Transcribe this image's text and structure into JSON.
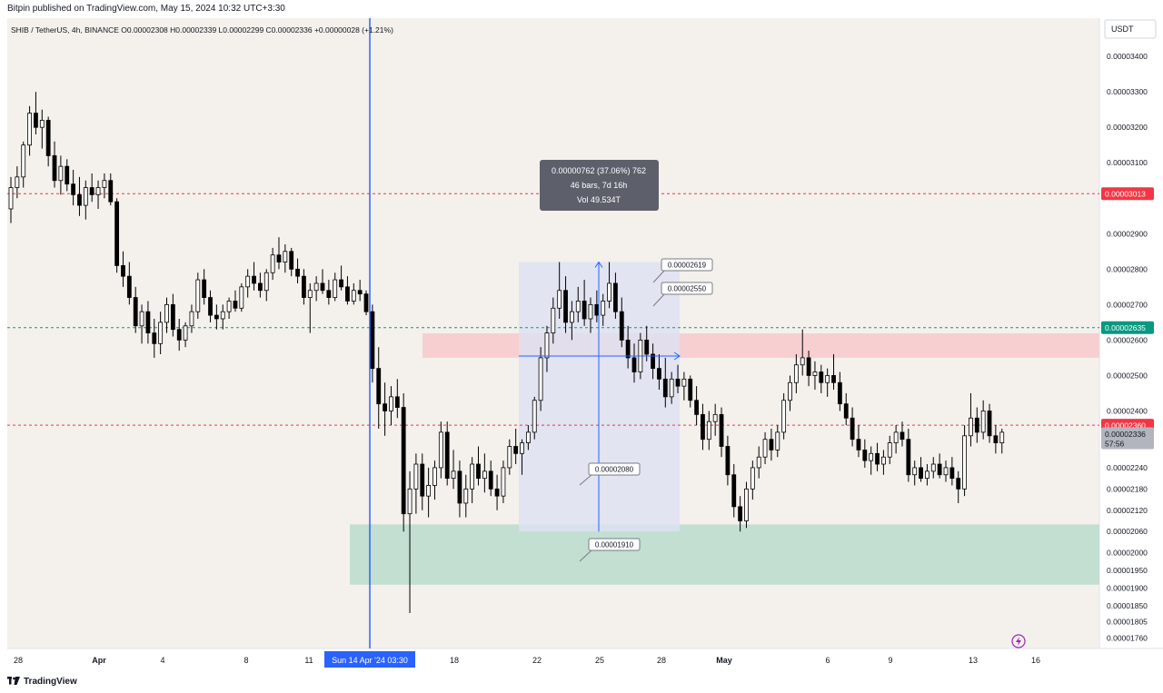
{
  "header": {
    "published": "Bitpin published on TradingView.com, May 15, 2024 10:32 UTC+3:30",
    "symbol_line": "SHIB / TetherUS, 4h, BINANCE",
    "ohlc": "O0.00002308 H0.00002339 L0.00002299 C0.00002336 +0.00000028 (+1.21%)"
  },
  "price_axis": {
    "currency": "USDT",
    "ticks": [
      "0.00003400",
      "0.00003300",
      "0.00003200",
      "0.00003100",
      "0.00002900",
      "0.00002800",
      "0.00002700",
      "0.00002600",
      "0.00002500",
      "0.00002400",
      "0.00002240",
      "0.00002180",
      "0.00002120",
      "0.00002060",
      "0.00002000",
      "0.00001950",
      "0.00001900",
      "0.00001850",
      "0.00001805",
      "0.00001760"
    ]
  },
  "time_axis": {
    "ticks": [
      "28",
      "Apr",
      "4",
      "8",
      "11",
      "18",
      "22",
      "25",
      "28",
      "May",
      "6",
      "9",
      "13",
      "16"
    ],
    "crosshair_label": "Sun 14 Apr '24   03:30"
  },
  "price_labels": {
    "level_3013": "0.00003013",
    "level_2635": "0.00002635",
    "level_2360": "0.00002360",
    "last_price": "0.00002336",
    "countdown": "57:56"
  },
  "measure_tooltip": {
    "line1": "0.00000762 (37.06%) 762",
    "line2": "46 bars, 7d 16h",
    "line3": "Vol 49.534T"
  },
  "callouts": {
    "c2619": "0.00002619",
    "c2550": "0.00002550",
    "c2080": "0.00002080",
    "c1910": "0.00001910"
  },
  "footer": {
    "brand": "TradingView"
  },
  "colors": {
    "background": "#f4f1ec",
    "bull_candle": "#ffffff",
    "bear_candle": "#000000",
    "red_line": "#f23645",
    "green_line": "#089981",
    "resistance_zone": "#f7c9cc",
    "support_zone": "#b9dccc",
    "measure_box": "#dde1f2",
    "crosshair": "#2962ff"
  },
  "chart_data": {
    "type": "candlestick",
    "title": "SHIB / TetherUS, 4h, BINANCE",
    "ylim": [
      1.73e-05,
      3.49e-05
    ],
    "y_ticks": [
      3.4e-05,
      3.3e-05,
      3.2e-05,
      3.1e-05,
      2.9e-05,
      2.8e-05,
      2.7e-05,
      2.6e-05,
      2.5e-05,
      2.4e-05,
      2.24e-05,
      2.18e-05,
      2.12e-05,
      2.06e-05,
      2e-05,
      1.95e-05,
      1.9e-05,
      1.85e-05,
      1.805e-05,
      1.76e-05
    ],
    "horizontal_lines": [
      {
        "value": 3.013e-05,
        "style": "dashed",
        "color": "red"
      },
      {
        "value": 2.635e-05,
        "style": "dashed",
        "color": "green"
      },
      {
        "value": 2.36e-05,
        "style": "dashed",
        "color": "red"
      }
    ],
    "zones": [
      {
        "name": "resistance",
        "from": 2.55e-05,
        "to": 2.619e-05
      },
      {
        "name": "support",
        "from": 1.91e-05,
        "to": 2.08e-05
      }
    ],
    "measure": {
      "change": 7.62e-06,
      "percent": 37.06,
      "bars": 46,
      "duration": "7d 16h",
      "volume": "49.534T"
    },
    "candles_ohlc": [
      [
        2.97e-05,
        3.06e-05,
        2.93e-05,
        3.03e-05
      ],
      [
        3.03e-05,
        3.09e-05,
        3e-05,
        3.06e-05
      ],
      [
        3.06e-05,
        3.16e-05,
        3.03e-05,
        3.15e-05
      ],
      [
        3.15e-05,
        3.26e-05,
        3.12e-05,
        3.24e-05
      ],
      [
        3.24e-05,
        3.3e-05,
        3.18e-05,
        3.2e-05
      ],
      [
        3.2e-05,
        3.25e-05,
        3.14e-05,
        3.22e-05
      ],
      [
        3.22e-05,
        3.23e-05,
        3.09e-05,
        3.12e-05
      ],
      [
        3.12e-05,
        3.16e-05,
        3.03e-05,
        3.05e-05
      ],
      [
        3.05e-05,
        3.12e-05,
        3.01e-05,
        3.09e-05
      ],
      [
        3.09e-05,
        3.11e-05,
        3.02e-05,
        3.04e-05
      ],
      [
        3.04e-05,
        3.08e-05,
        2.98e-05,
        3.01e-05
      ],
      [
        3.01e-05,
        3.06e-05,
        2.95e-05,
        2.98e-05
      ],
      [
        2.98e-05,
        3.05e-05,
        2.94e-05,
        3.03e-05
      ],
      [
        3.03e-05,
        3.07e-05,
        2.99e-05,
        3.01e-05
      ],
      [
        3.01e-05,
        3.05e-05,
        2.97e-05,
        3.03e-05
      ],
      [
        3.03e-05,
        3.07e-05,
        3e-05,
        3.05e-05
      ],
      [
        3.05e-05,
        3.07e-05,
        2.98e-05,
        2.99e-05
      ],
      [
        2.99e-05,
        3e-05,
        2.79e-05,
        2.81e-05
      ],
      [
        2.81e-05,
        2.85e-05,
        2.75e-05,
        2.78e-05
      ],
      [
        2.78e-05,
        2.82e-05,
        2.7e-05,
        2.72e-05
      ],
      [
        2.72e-05,
        2.75e-05,
        2.62e-05,
        2.64e-05
      ],
      [
        2.64e-05,
        2.7e-05,
        2.59e-05,
        2.68e-05
      ],
      [
        2.68e-05,
        2.71e-05,
        2.59e-05,
        2.62e-05
      ],
      [
        2.62e-05,
        2.66e-05,
        2.55e-05,
        2.59e-05
      ],
      [
        2.59e-05,
        2.68e-05,
        2.56e-05,
        2.65e-05
      ],
      [
        2.65e-05,
        2.72e-05,
        2.62e-05,
        2.7e-05
      ],
      [
        2.7e-05,
        2.73e-05,
        2.61e-05,
        2.63e-05
      ],
      [
        2.63e-05,
        2.66e-05,
        2.57e-05,
        2.6e-05
      ],
      [
        2.6e-05,
        2.65e-05,
        2.58e-05,
        2.64e-05
      ],
      [
        2.64e-05,
        2.7e-05,
        2.62e-05,
        2.68e-05
      ],
      [
        2.68e-05,
        2.79e-05,
        2.66e-05,
        2.77e-05
      ],
      [
        2.77e-05,
        2.8e-05,
        2.7e-05,
        2.72e-05
      ],
      [
        2.72e-05,
        2.74e-05,
        2.65e-05,
        2.67e-05
      ],
      [
        2.67e-05,
        2.7e-05,
        2.63e-05,
        2.66e-05
      ],
      [
        2.66e-05,
        2.7e-05,
        2.63e-05,
        2.68e-05
      ],
      [
        2.68e-05,
        2.72e-05,
        2.66e-05,
        2.71e-05
      ],
      [
        2.71e-05,
        2.74e-05,
        2.68e-05,
        2.69e-05
      ],
      [
        2.69e-05,
        2.76e-05,
        2.68e-05,
        2.75e-05
      ],
      [
        2.75e-05,
        2.8e-05,
        2.72e-05,
        2.78e-05
      ],
      [
        2.78e-05,
        2.82e-05,
        2.74e-05,
        2.76e-05
      ],
      [
        2.76e-05,
        2.79e-05,
        2.72e-05,
        2.74e-05
      ],
      [
        2.74e-05,
        2.8e-05,
        2.71e-05,
        2.79e-05
      ],
      [
        2.79e-05,
        2.86e-05,
        2.77e-05,
        2.84e-05
      ],
      [
        2.84e-05,
        2.89e-05,
        2.8e-05,
        2.82e-05
      ],
      [
        2.82e-05,
        2.87e-05,
        2.79e-05,
        2.85e-05
      ],
      [
        2.85e-05,
        2.86e-05,
        2.78e-05,
        2.8e-05
      ],
      [
        2.8e-05,
        2.83e-05,
        2.76e-05,
        2.78e-05
      ],
      [
        2.78e-05,
        2.8e-05,
        2.7e-05,
        2.72e-05
      ],
      [
        2.72e-05,
        2.76e-05,
        2.62e-05,
        2.74e-05
      ],
      [
        2.74e-05,
        2.78e-05,
        2.71e-05,
        2.76e-05
      ],
      [
        2.76e-05,
        2.8e-05,
        2.73e-05,
        2.74e-05
      ],
      [
        2.74e-05,
        2.77e-05,
        2.7e-05,
        2.72e-05
      ],
      [
        2.72e-05,
        2.79e-05,
        2.71e-05,
        2.77e-05
      ],
      [
        2.77e-05,
        2.81e-05,
        2.74e-05,
        2.75e-05
      ],
      [
        2.75e-05,
        2.78e-05,
        2.7e-05,
        2.71e-05
      ],
      [
        2.71e-05,
        2.76e-05,
        2.7e-05,
        2.74e-05
      ],
      [
        2.74e-05,
        2.77e-05,
        2.71e-05,
        2.73e-05
      ],
      [
        2.73e-05,
        2.74e-05,
        2.67e-05,
        2.68e-05
      ],
      [
        2.68e-05,
        2.7e-05,
        2.48e-05,
        2.52e-05
      ],
      [
        2.52e-05,
        2.58e-05,
        2.35e-05,
        2.42e-05
      ],
      [
        2.42e-05,
        2.48e-05,
        2.33e-05,
        2.4e-05
      ],
      [
        2.4e-05,
        2.47e-05,
        2.36e-05,
        2.44e-05
      ],
      [
        2.44e-05,
        2.49e-05,
        2.38e-05,
        2.41e-05
      ],
      [
        2.41e-05,
        2.45e-05,
        2.06e-05,
        2.11e-05
      ],
      [
        2.11e-05,
        2.23e-05,
        1.83e-05,
        2.18e-05
      ],
      [
        2.18e-05,
        2.28e-05,
        2.11e-05,
        2.25e-05
      ],
      [
        2.25e-05,
        2.28e-05,
        2.12e-05,
        2.16e-05
      ],
      [
        2.16e-05,
        2.24e-05,
        2.1e-05,
        2.19e-05
      ],
      [
        2.19e-05,
        2.26e-05,
        2.15e-05,
        2.24e-05
      ],
      [
        2.24e-05,
        2.37e-05,
        2.21e-05,
        2.34e-05
      ],
      [
        2.34e-05,
        2.37e-05,
        2.19e-05,
        2.21e-05
      ],
      [
        2.21e-05,
        2.29e-05,
        2.18e-05,
        2.23e-05
      ],
      [
        2.23e-05,
        2.26e-05,
        2.1e-05,
        2.14e-05
      ],
      [
        2.14e-05,
        2.22e-05,
        2.1e-05,
        2.18e-05
      ],
      [
        2.18e-05,
        2.27e-05,
        2.14e-05,
        2.25e-05
      ],
      [
        2.25e-05,
        2.3e-05,
        2.19e-05,
        2.21e-05
      ],
      [
        2.21e-05,
        2.28e-05,
        2.17e-05,
        2.23e-05
      ],
      [
        2.23e-05,
        2.26e-05,
        2.16e-05,
        2.18e-05
      ],
      [
        2.18e-05,
        2.22e-05,
        2.12e-05,
        2.16e-05
      ],
      [
        2.16e-05,
        2.26e-05,
        2.14e-05,
        2.24e-05
      ],
      [
        2.24e-05,
        2.32e-05,
        2.22e-05,
        2.3e-05
      ],
      [
        2.3e-05,
        2.35e-05,
        2.25e-05,
        2.28e-05
      ],
      [
        2.28e-05,
        2.32e-05,
        2.22e-05,
        2.31e-05
      ],
      [
        2.31e-05,
        2.36e-05,
        2.29e-05,
        2.34e-05
      ],
      [
        2.34e-05,
        2.44e-05,
        2.32e-05,
        2.43e-05
      ],
      [
        2.43e-05,
        2.58e-05,
        2.4e-05,
        2.55e-05
      ],
      [
        2.55e-05,
        2.64e-05,
        2.51e-05,
        2.62e-05
      ],
      [
        2.62e-05,
        2.72e-05,
        2.59e-05,
        2.69e-05
      ],
      [
        2.69e-05,
        2.82e-05,
        2.66e-05,
        2.74e-05
      ],
      [
        2.74e-05,
        2.78e-05,
        2.62e-05,
        2.65e-05
      ],
      [
        2.65e-05,
        2.71e-05,
        2.6e-05,
        2.68e-05
      ],
      [
        2.68e-05,
        2.75e-05,
        2.65e-05,
        2.71e-05
      ],
      [
        2.71e-05,
        2.77e-05,
        2.64e-05,
        2.66e-05
      ],
      [
        2.66e-05,
        2.72e-05,
        2.62e-05,
        2.7e-05
      ],
      [
        2.7e-05,
        2.74e-05,
        2.65e-05,
        2.67e-05
      ],
      [
        2.67e-05,
        2.73e-05,
        2.64e-05,
        2.71e-05
      ],
      [
        2.71e-05,
        2.82e-05,
        2.69e-05,
        2.76e-05
      ],
      [
        2.76e-05,
        2.79e-05,
        2.66e-05,
        2.68e-05
      ],
      [
        2.68e-05,
        2.72e-05,
        2.58e-05,
        2.6e-05
      ],
      [
        2.6e-05,
        2.64e-05,
        2.52e-05,
        2.55e-05
      ],
      [
        2.55e-05,
        2.59e-05,
        2.48e-05,
        2.51e-05
      ],
      [
        2.51e-05,
        2.62e-05,
        2.49e-05,
        2.6e-05
      ],
      [
        2.6e-05,
        2.64e-05,
        2.54e-05,
        2.56e-05
      ],
      [
        2.56e-05,
        2.59e-05,
        2.49e-05,
        2.52e-05
      ],
      [
        2.52e-05,
        2.56e-05,
        2.46e-05,
        2.49e-05
      ],
      [
        2.49e-05,
        2.55e-05,
        2.41e-05,
        2.44e-05
      ],
      [
        2.44e-05,
        2.51e-05,
        2.42e-05,
        2.49e-05
      ],
      [
        2.49e-05,
        2.53e-05,
        2.45e-05,
        2.47e-05
      ],
      [
        2.47e-05,
        2.51e-05,
        2.43e-05,
        2.49e-05
      ],
      [
        2.49e-05,
        2.5e-05,
        2.41e-05,
        2.43e-05
      ],
      [
        2.43e-05,
        2.47e-05,
        2.36e-05,
        2.39e-05
      ],
      [
        2.39e-05,
        2.42e-05,
        2.29e-05,
        2.32e-05
      ],
      [
        2.32e-05,
        2.4e-05,
        2.29e-05,
        2.37e-05
      ],
      [
        2.37e-05,
        2.42e-05,
        2.33e-05,
        2.39e-05
      ],
      [
        2.39e-05,
        2.41e-05,
        2.27e-05,
        2.3e-05
      ],
      [
        2.3e-05,
        2.33e-05,
        2.19e-05,
        2.22e-05
      ],
      [
        2.22e-05,
        2.25e-05,
        2.1e-05,
        2.13e-05
      ],
      [
        2.13e-05,
        2.16e-05,
        2.06e-05,
        2.09e-05
      ],
      [
        2.09e-05,
        2.2e-05,
        2.07e-05,
        2.18e-05
      ],
      [
        2.18e-05,
        2.26e-05,
        2.15e-05,
        2.24e-05
      ],
      [
        2.24e-05,
        2.3e-05,
        2.21e-05,
        2.27e-05
      ],
      [
        2.27e-05,
        2.34e-05,
        2.25e-05,
        2.32e-05
      ],
      [
        2.32e-05,
        2.35e-05,
        2.26e-05,
        2.29e-05
      ],
      [
        2.29e-05,
        2.36e-05,
        2.27e-05,
        2.34e-05
      ],
      [
        2.34e-05,
        2.45e-05,
        2.32e-05,
        2.43e-05
      ],
      [
        2.43e-05,
        2.5e-05,
        2.4e-05,
        2.48e-05
      ],
      [
        2.48e-05,
        2.56e-05,
        2.45e-05,
        2.53e-05
      ],
      [
        2.53e-05,
        2.63e-05,
        2.5e-05,
        2.55e-05
      ],
      [
        2.55e-05,
        2.57e-05,
        2.47e-05,
        2.5e-05
      ],
      [
        2.5e-05,
        2.54e-05,
        2.46e-05,
        2.51e-05
      ],
      [
        2.51e-05,
        2.53e-05,
        2.45e-05,
        2.48e-05
      ],
      [
        2.48e-05,
        2.52e-05,
        2.44e-05,
        2.5e-05
      ],
      [
        2.5e-05,
        2.56e-05,
        2.46e-05,
        2.48e-05
      ],
      [
        2.48e-05,
        2.51e-05,
        2.4e-05,
        2.42e-05
      ],
      [
        2.42e-05,
        2.45e-05,
        2.36e-05,
        2.38e-05
      ],
      [
        2.38e-05,
        2.41e-05,
        2.3e-05,
        2.32e-05
      ],
      [
        2.32e-05,
        2.36e-05,
        2.27e-05,
        2.29e-05
      ],
      [
        2.29e-05,
        2.32e-05,
        2.24e-05,
        2.26e-05
      ],
      [
        2.26e-05,
        2.3e-05,
        2.22e-05,
        2.28e-05
      ],
      [
        2.28e-05,
        2.31e-05,
        2.23e-05,
        2.25e-05
      ],
      [
        2.25e-05,
        2.29e-05,
        2.22e-05,
        2.27e-05
      ],
      [
        2.27e-05,
        2.33e-05,
        2.25e-05,
        2.31e-05
      ],
      [
        2.31e-05,
        2.36e-05,
        2.28e-05,
        2.34e-05
      ],
      [
        2.34e-05,
        2.37e-05,
        2.3e-05,
        2.32e-05
      ],
      [
        2.32e-05,
        2.35e-05,
        2.2e-05,
        2.22e-05
      ],
      [
        2.22e-05,
        2.26e-05,
        2.19e-05,
        2.24e-05
      ],
      [
        2.24e-05,
        2.27e-05,
        2.2e-05,
        2.21e-05
      ],
      [
        2.21e-05,
        2.25e-05,
        2.19e-05,
        2.23e-05
      ],
      [
        2.23e-05,
        2.27e-05,
        2.21e-05,
        2.25e-05
      ],
      [
        2.25e-05,
        2.28e-05,
        2.21e-05,
        2.22e-05
      ],
      [
        2.22e-05,
        2.26e-05,
        2.2e-05,
        2.24e-05
      ],
      [
        2.24e-05,
        2.27e-05,
        2.19e-05,
        2.21e-05
      ],
      [
        2.21e-05,
        2.23e-05,
        2.14e-05,
        2.18e-05
      ],
      [
        2.18e-05,
        2.36e-05,
        2.16e-05,
        2.33e-05
      ],
      [
        2.33e-05,
        2.45e-05,
        2.3e-05,
        2.38e-05
      ],
      [
        2.38e-05,
        2.41e-05,
        2.31e-05,
        2.34e-05
      ],
      [
        2.34e-05,
        2.43e-05,
        2.32e-05,
        2.4e-05
      ],
      [
        2.4e-05,
        2.42e-05,
        2.31e-05,
        2.33e-05
      ],
      [
        2.33e-05,
        2.36e-05,
        2.28e-05,
        2.31e-05
      ],
      [
        2.31e-05,
        2.35e-05,
        2.28e-05,
        2.34e-05
      ]
    ]
  }
}
